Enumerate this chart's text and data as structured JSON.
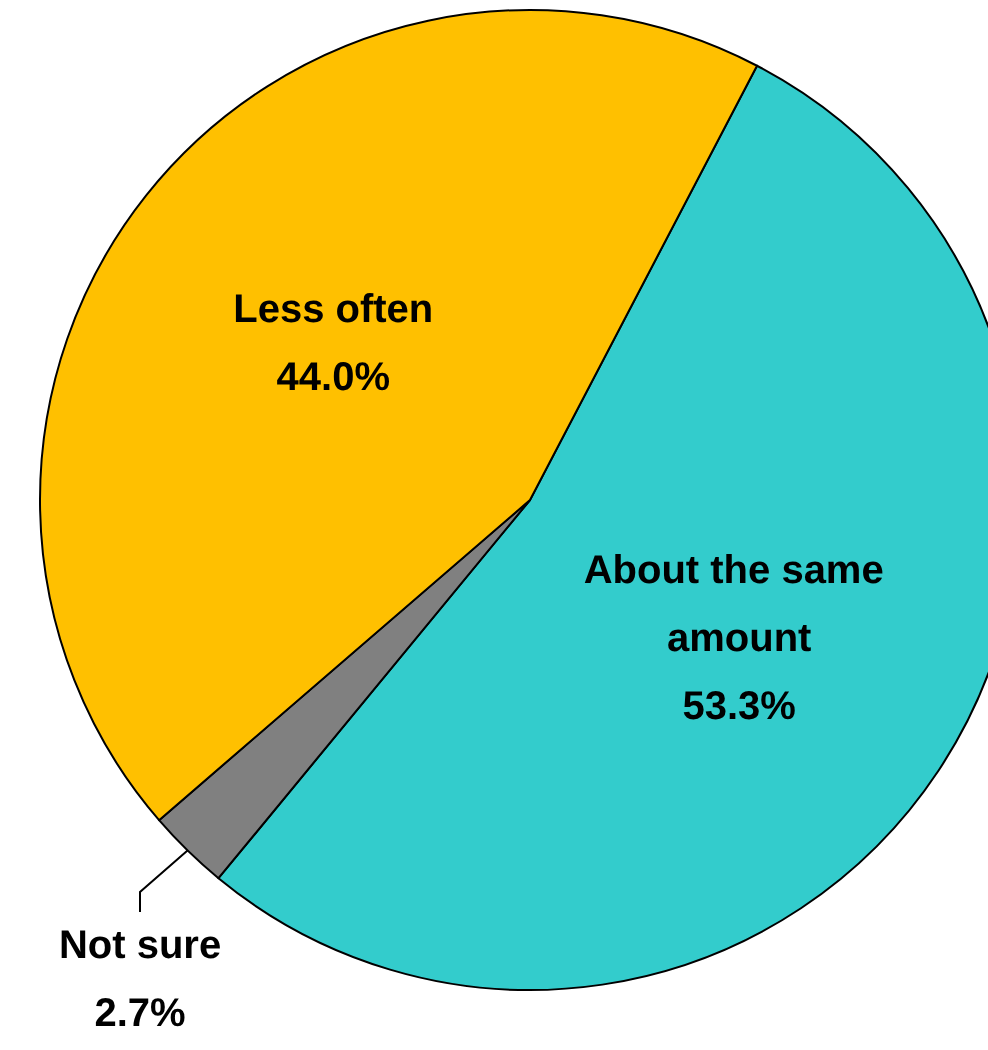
{
  "chart_data": {
    "type": "pie",
    "categories": [
      "About the same amount",
      "Not sure",
      "Less often"
    ],
    "values": [
      53.3,
      2.7,
      44.0
    ],
    "colors": [
      "#33cccc",
      "#808080",
      "#ffc000"
    ],
    "value_labels": [
      "53.3%",
      "2.7%",
      "44.0%"
    ],
    "legend": false
  }
}
